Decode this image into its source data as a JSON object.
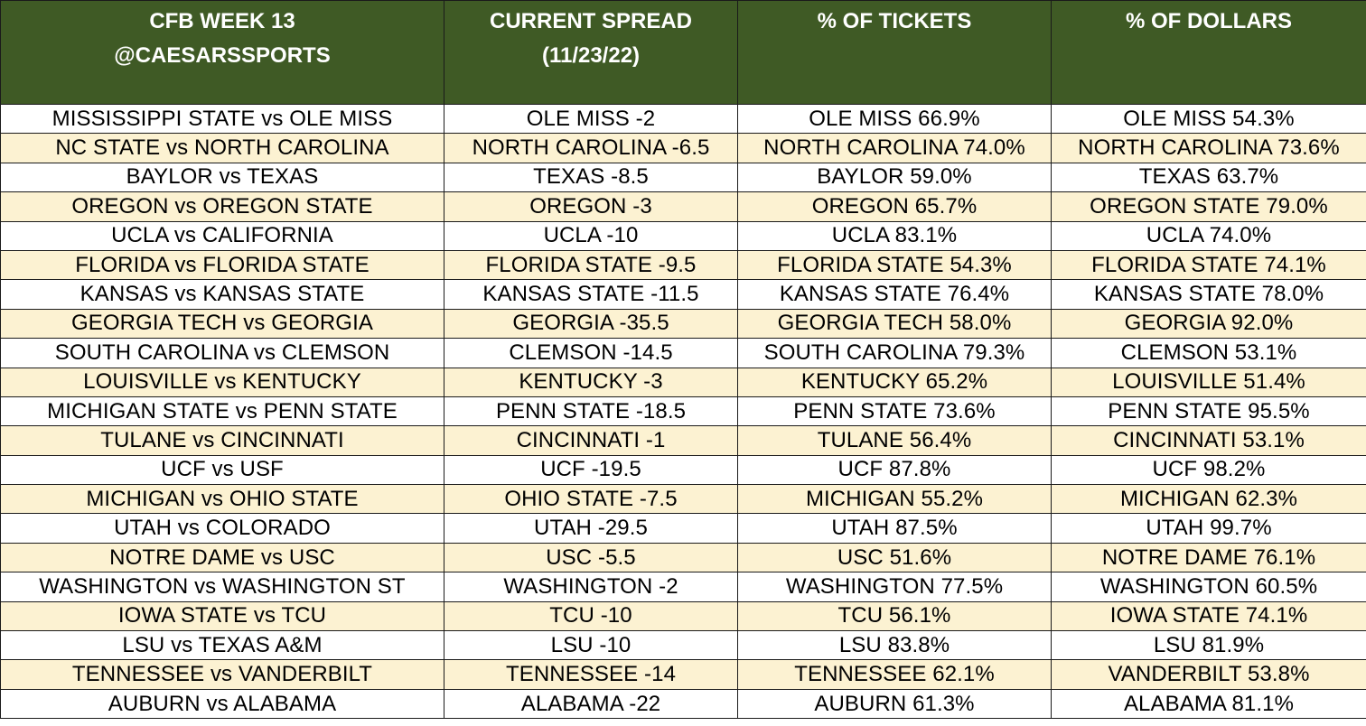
{
  "headers": [
    [
      "CFB WEEK 13",
      "@CAESARSSPORTS"
    ],
    [
      "CURRENT SPREAD",
      "(11/23/22)"
    ],
    [
      "% OF TICKETS"
    ],
    [
      "% OF DOLLARS"
    ]
  ],
  "colors": {
    "header_bg": "#3f5a25",
    "header_text": "#ffffff",
    "alt_row_bg": "#fcf2d2",
    "row_bg": "#ffffff"
  },
  "rows": [
    [
      "MISSISSIPPI STATE vs OLE MISS",
      "OLE MISS -2",
      "OLE MISS 66.9%",
      "OLE MISS 54.3%"
    ],
    [
      "NC STATE vs NORTH CAROLINA",
      "NORTH CAROLINA -6.5",
      "NORTH CAROLINA 74.0%",
      "NORTH CAROLINA 73.6%"
    ],
    [
      "BAYLOR vs TEXAS",
      "TEXAS -8.5",
      "BAYLOR 59.0%",
      "TEXAS 63.7%"
    ],
    [
      "OREGON vs OREGON STATE",
      "OREGON -3",
      "OREGON 65.7%",
      "OREGON STATE 79.0%"
    ],
    [
      "UCLA vs CALIFORNIA",
      "UCLA -10",
      "UCLA 83.1%",
      "UCLA 74.0%"
    ],
    [
      "FLORIDA vs FLORIDA STATE",
      "FLORIDA STATE -9.5",
      "FLORIDA STATE 54.3%",
      "FLORIDA STATE 74.1%"
    ],
    [
      "KANSAS vs KANSAS STATE",
      "KANSAS STATE -11.5",
      "KANSAS STATE 76.4%",
      "KANSAS STATE 78.0%"
    ],
    [
      "GEORGIA TECH vs GEORGIA",
      "GEORGIA -35.5",
      "GEORGIA TECH 58.0%",
      "GEORGIA 92.0%"
    ],
    [
      "SOUTH CAROLINA vs CLEMSON",
      "CLEMSON -14.5",
      "SOUTH CAROLINA 79.3%",
      "CLEMSON 53.1%"
    ],
    [
      "LOUISVILLE vs KENTUCKY",
      "KENTUCKY -3",
      "KENTUCKY 65.2%",
      "LOUISVILLE 51.4%"
    ],
    [
      "MICHIGAN STATE vs PENN STATE",
      "PENN STATE -18.5",
      "PENN STATE 73.6%",
      "PENN STATE 95.5%"
    ],
    [
      "TULANE vs CINCINNATI",
      "CINCINNATI -1",
      "TULANE 56.4%",
      "CINCINNATI 53.1%"
    ],
    [
      "UCF vs USF",
      "UCF -19.5",
      "UCF 87.8%",
      "UCF 98.2%"
    ],
    [
      "MICHIGAN vs OHIO STATE",
      "OHIO STATE -7.5",
      "MICHIGAN 55.2%",
      "MICHIGAN 62.3%"
    ],
    [
      "UTAH vs COLORADO",
      "UTAH -29.5",
      "UTAH 87.5%",
      "UTAH 99.7%"
    ],
    [
      "NOTRE DAME vs USC",
      "USC -5.5",
      "USC 51.6%",
      "NOTRE DAME 76.1%"
    ],
    [
      "WASHINGTON vs WASHINGTON ST",
      "WASHINGTON -2",
      "WASHINGTON 77.5%",
      "WASHINGTON 60.5%"
    ],
    [
      "IOWA STATE vs TCU",
      "TCU -10",
      "TCU 56.1%",
      "IOWA STATE 74.1%"
    ],
    [
      "LSU vs TEXAS A&M",
      "LSU -10",
      "LSU 83.8%",
      "LSU 81.9%"
    ],
    [
      "TENNESSEE vs VANDERBILT",
      "TENNESSEE -14",
      "TENNESSEE 62.1%",
      "VANDERBILT 53.8%"
    ],
    [
      "AUBURN vs ALABAMA",
      "ALABAMA -22",
      "AUBURN 61.3%",
      "ALABAMA 81.1%"
    ]
  ]
}
